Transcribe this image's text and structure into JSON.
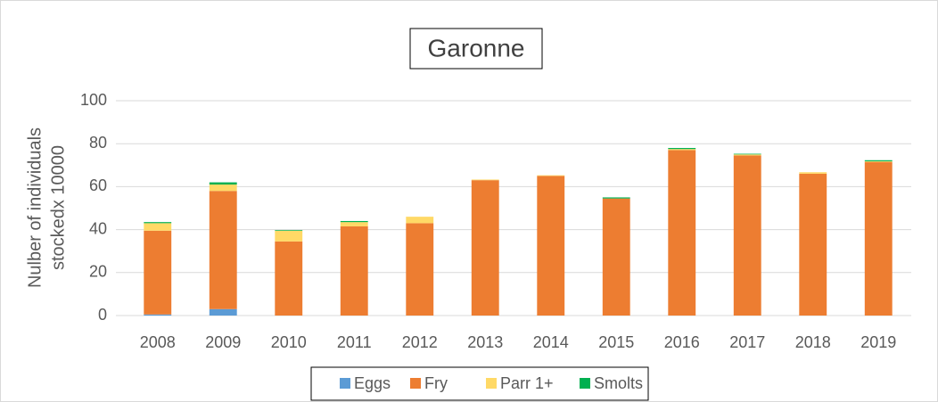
{
  "chart_data": {
    "type": "stacked_bar",
    "title": "Garonne",
    "y_label": [
      "Nulber of individuals",
      "stockedx 10000"
    ],
    "categories": [
      "2008",
      "2009",
      "2010",
      "2011",
      "2012",
      "2013",
      "2014",
      "2015",
      "2016",
      "2017",
      "2018",
      "2019"
    ],
    "series": [
      {
        "name": "Eggs",
        "color": "#5b9bd5",
        "values": [
          0.5,
          3,
          0,
          0,
          0,
          0,
          0,
          0,
          0,
          0,
          0,
          0
        ]
      },
      {
        "name": "Fry",
        "color": "#ed7d31",
        "values": [
          39,
          55,
          34.5,
          41.5,
          43,
          63,
          65,
          54.5,
          77,
          74.5,
          66,
          71.5
        ]
      },
      {
        "name": "Parr 1+",
        "color": "#ffd966",
        "values": [
          3.5,
          3,
          5,
          2,
          3,
          0.3,
          0.3,
          0,
          0.5,
          0.5,
          0.7,
          0.3
        ]
      },
      {
        "name": "Smolts",
        "color": "#00b050",
        "values": [
          0.5,
          1,
          0.3,
          0.5,
          0,
          0,
          0,
          0.5,
          0.5,
          0.3,
          0,
          0.5
        ]
      }
    ],
    "ylim": [
      0,
      100
    ],
    "yticks": [
      0,
      20,
      40,
      60,
      80,
      100
    ],
    "grid": true,
    "legend": "bottom"
  }
}
